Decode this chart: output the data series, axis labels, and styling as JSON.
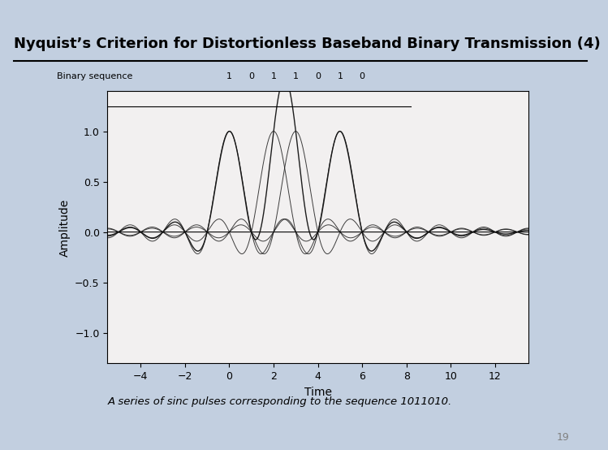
{
  "title": "Nyquist’s Criterion for Distortionless Baseband Binary Transmission (4)",
  "caption": "A series of sinc pulses corresponding to the sequence 1011010.",
  "page_number": "19",
  "binary_sequence": [
    1,
    0,
    1,
    1,
    0,
    1,
    0
  ],
  "pulse_centers": [
    0,
    1,
    2,
    3,
    4,
    5,
    6
  ],
  "xlabel": "Time",
  "ylabel": "Amplitude",
  "xlim": [
    -5.5,
    13.5
  ],
  "ylim": [
    -1.3,
    1.4
  ],
  "yticks": [
    -1.0,
    -0.5,
    0.0,
    0.5,
    1.0
  ],
  "xticks": [
    -4,
    -2,
    0,
    2,
    4,
    6,
    8,
    10,
    12
  ],
  "header_color": "#b5581a",
  "bg_color": "#c2cfe0",
  "plot_bg": "#f2f0f0",
  "line_color": "#111111"
}
